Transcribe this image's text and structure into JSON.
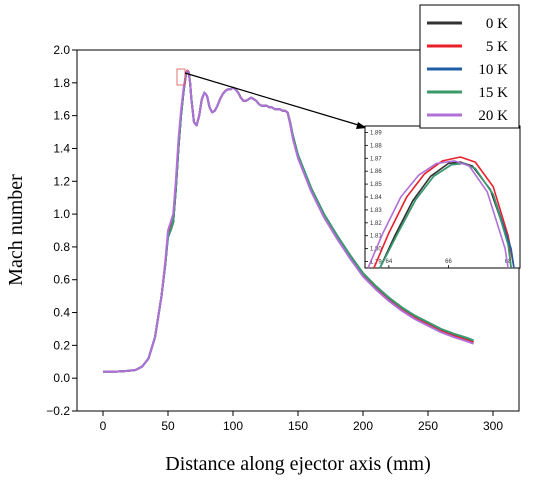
{
  "chart_data": {
    "type": "line",
    "title": "",
    "xlabel": "Distance along ejector axis (mm)",
    "ylabel": "Mach number",
    "xlim": [
      -20,
      320
    ],
    "ylim": [
      -0.2,
      2.0
    ],
    "xticks": [
      0,
      50,
      100,
      150,
      200,
      250,
      300
    ],
    "yticks": [
      -0.2,
      0.0,
      0.2,
      0.4,
      0.6,
      0.8,
      1.0,
      1.2,
      1.4,
      1.6,
      1.8,
      2.0
    ],
    "xtick_labels": [
      "0",
      "50",
      "100",
      "150",
      "200",
      "250",
      "300"
    ],
    "ytick_labels": [
      "−0.2",
      "0.0",
      "0.2",
      "0.4",
      "0.6",
      "0.8",
      "1.0",
      "1.2",
      "1.4",
      "1.6",
      "1.8",
      "2.0"
    ],
    "legend_placement": "top-right",
    "grid": false,
    "x": [
      0,
      10,
      20,
      25,
      30,
      35,
      40,
      45,
      48,
      50,
      52,
      54,
      56,
      58,
      60,
      62,
      64,
      65,
      66,
      67,
      68,
      70,
      72,
      74,
      76,
      78,
      80,
      82,
      84,
      86,
      88,
      90,
      92,
      94,
      96,
      98,
      100,
      102,
      104,
      106,
      108,
      110,
      112,
      114,
      116,
      118,
      120,
      122,
      124,
      126,
      128,
      130,
      132,
      134,
      136,
      138,
      140,
      142,
      144,
      146,
      150,
      160,
      170,
      180,
      190,
      200,
      210,
      220,
      230,
      240,
      250,
      260,
      270,
      280,
      285
    ],
    "series": [
      {
        "name": "0 K",
        "color": "#333333",
        "values": [
          0.04,
          0.04,
          0.045,
          0.05,
          0.07,
          0.12,
          0.25,
          0.5,
          0.7,
          0.88,
          0.9,
          0.95,
          1.15,
          1.4,
          1.6,
          1.75,
          1.86,
          1.87,
          1.86,
          1.8,
          1.7,
          1.56,
          1.54,
          1.6,
          1.7,
          1.74,
          1.72,
          1.65,
          1.62,
          1.63,
          1.66,
          1.7,
          1.73,
          1.75,
          1.76,
          1.76,
          1.77,
          1.76,
          1.74,
          1.71,
          1.69,
          1.69,
          1.7,
          1.71,
          1.7,
          1.69,
          1.67,
          1.66,
          1.66,
          1.66,
          1.65,
          1.65,
          1.64,
          1.64,
          1.64,
          1.63,
          1.63,
          1.62,
          1.55,
          1.47,
          1.35,
          1.15,
          0.99,
          0.86,
          0.74,
          0.63,
          0.55,
          0.48,
          0.42,
          0.37,
          0.33,
          0.29,
          0.26,
          0.235,
          0.22
        ]
      },
      {
        "name": "5 K",
        "color": "#e8202a",
        "values": [
          0.04,
          0.04,
          0.045,
          0.05,
          0.07,
          0.12,
          0.25,
          0.5,
          0.7,
          0.88,
          0.92,
          0.96,
          1.15,
          1.4,
          1.6,
          1.75,
          1.865,
          1.875,
          1.865,
          1.8,
          1.7,
          1.56,
          1.54,
          1.6,
          1.7,
          1.74,
          1.72,
          1.65,
          1.62,
          1.63,
          1.66,
          1.7,
          1.73,
          1.75,
          1.76,
          1.76,
          1.77,
          1.76,
          1.74,
          1.71,
          1.69,
          1.69,
          1.7,
          1.71,
          1.7,
          1.69,
          1.67,
          1.66,
          1.66,
          1.66,
          1.65,
          1.65,
          1.64,
          1.64,
          1.64,
          1.63,
          1.63,
          1.62,
          1.55,
          1.47,
          1.35,
          1.15,
          0.99,
          0.86,
          0.74,
          0.63,
          0.55,
          0.48,
          0.42,
          0.37,
          0.33,
          0.29,
          0.26,
          0.235,
          0.22
        ]
      },
      {
        "name": "10 K",
        "color": "#1f5fa8",
        "values": [
          0.04,
          0.04,
          0.045,
          0.05,
          0.07,
          0.12,
          0.25,
          0.5,
          0.7,
          0.86,
          0.9,
          0.95,
          1.15,
          1.4,
          1.6,
          1.75,
          1.86,
          1.87,
          1.86,
          1.8,
          1.7,
          1.56,
          1.54,
          1.6,
          1.7,
          1.74,
          1.72,
          1.65,
          1.62,
          1.63,
          1.66,
          1.7,
          1.73,
          1.75,
          1.76,
          1.76,
          1.77,
          1.76,
          1.74,
          1.71,
          1.69,
          1.69,
          1.7,
          1.71,
          1.7,
          1.69,
          1.67,
          1.66,
          1.66,
          1.66,
          1.65,
          1.65,
          1.64,
          1.64,
          1.64,
          1.63,
          1.63,
          1.62,
          1.56,
          1.48,
          1.36,
          1.16,
          1.0,
          0.87,
          0.75,
          0.64,
          0.56,
          0.49,
          0.43,
          0.38,
          0.34,
          0.3,
          0.27,
          0.245,
          0.23
        ]
      },
      {
        "name": "15 K",
        "color": "#3b9a6a",
        "values": [
          0.04,
          0.04,
          0.045,
          0.05,
          0.07,
          0.12,
          0.25,
          0.5,
          0.7,
          0.87,
          0.9,
          0.95,
          1.15,
          1.4,
          1.6,
          1.75,
          1.86,
          1.87,
          1.86,
          1.8,
          1.7,
          1.56,
          1.54,
          1.6,
          1.7,
          1.74,
          1.72,
          1.65,
          1.62,
          1.63,
          1.66,
          1.7,
          1.73,
          1.75,
          1.76,
          1.76,
          1.77,
          1.76,
          1.74,
          1.71,
          1.69,
          1.69,
          1.7,
          1.71,
          1.7,
          1.69,
          1.67,
          1.66,
          1.66,
          1.66,
          1.65,
          1.65,
          1.64,
          1.64,
          1.64,
          1.63,
          1.63,
          1.62,
          1.56,
          1.48,
          1.36,
          1.16,
          1.0,
          0.87,
          0.75,
          0.64,
          0.56,
          0.49,
          0.43,
          0.38,
          0.34,
          0.3,
          0.27,
          0.245,
          0.23
        ]
      },
      {
        "name": "20 K",
        "color": "#b070d8",
        "values": [
          0.04,
          0.04,
          0.045,
          0.05,
          0.07,
          0.12,
          0.25,
          0.5,
          0.72,
          0.9,
          0.95,
          1.0,
          1.2,
          1.45,
          1.63,
          1.77,
          1.86,
          1.87,
          1.86,
          1.8,
          1.7,
          1.56,
          1.54,
          1.6,
          1.7,
          1.74,
          1.72,
          1.65,
          1.62,
          1.63,
          1.66,
          1.7,
          1.73,
          1.75,
          1.76,
          1.76,
          1.77,
          1.76,
          1.74,
          1.71,
          1.69,
          1.69,
          1.7,
          1.71,
          1.7,
          1.69,
          1.67,
          1.66,
          1.66,
          1.66,
          1.65,
          1.65,
          1.64,
          1.64,
          1.64,
          1.63,
          1.63,
          1.62,
          1.55,
          1.46,
          1.34,
          1.14,
          0.98,
          0.85,
          0.73,
          0.62,
          0.54,
          0.47,
          0.41,
          0.36,
          0.32,
          0.28,
          0.25,
          0.225,
          0.21
        ]
      }
    ],
    "inset": {
      "xlim": [
        63.2,
        68.4
      ],
      "ylim": [
        1.785,
        1.895
      ],
      "xticks": [
        64,
        66,
        68
      ],
      "xtick_labels": [
        "64",
        "66",
        "68"
      ],
      "yticks": [
        1.79,
        1.8,
        1.81,
        1.82,
        1.83,
        1.84,
        1.85,
        1.86,
        1.87,
        1.88,
        1.89
      ],
      "ytick_labels": [
        "1.79",
        "1.80",
        "1.81",
        "1.82",
        "1.83",
        "1.84",
        "1.85",
        "1.86",
        "1.87",
        "1.88",
        "1.89"
      ],
      "series": [
        {
          "name": "0 K",
          "x": [
            63.7,
            64.2,
            64.8,
            65.4,
            66.0,
            66.4,
            66.8,
            67.4,
            68.0,
            68.1
          ],
          "values": [
            1.785,
            1.81,
            1.837,
            1.856,
            1.866,
            1.867,
            1.864,
            1.846,
            1.806,
            1.785
          ]
        },
        {
          "name": "5 K",
          "x": [
            63.5,
            64.0,
            64.6,
            65.2,
            65.8,
            66.4,
            66.9,
            67.5,
            68.0,
            68.2
          ],
          "values": [
            1.785,
            1.812,
            1.84,
            1.858,
            1.868,
            1.871,
            1.867,
            1.848,
            1.81,
            1.785
          ]
        },
        {
          "name": "10 K",
          "x": [
            63.7,
            64.3,
            64.9,
            65.5,
            66.1,
            66.5,
            66.9,
            67.5,
            68.1,
            68.2
          ],
          "values": [
            1.785,
            1.812,
            1.838,
            1.856,
            1.865,
            1.866,
            1.862,
            1.842,
            1.8,
            1.785
          ]
        },
        {
          "name": "15 K",
          "x": [
            63.7,
            64.3,
            64.9,
            65.5,
            66.1,
            66.5,
            66.9,
            67.5,
            68.0,
            68.1
          ],
          "values": [
            1.785,
            1.812,
            1.838,
            1.856,
            1.865,
            1.866,
            1.862,
            1.842,
            1.803,
            1.785
          ]
        },
        {
          "name": "20 K",
          "x": [
            63.3,
            63.8,
            64.4,
            65.0,
            65.6,
            66.2,
            66.7,
            67.3,
            67.9,
            68.0
          ],
          "values": [
            1.785,
            1.812,
            1.84,
            1.857,
            1.866,
            1.868,
            1.864,
            1.844,
            1.8,
            1.785
          ]
        }
      ]
    }
  }
}
